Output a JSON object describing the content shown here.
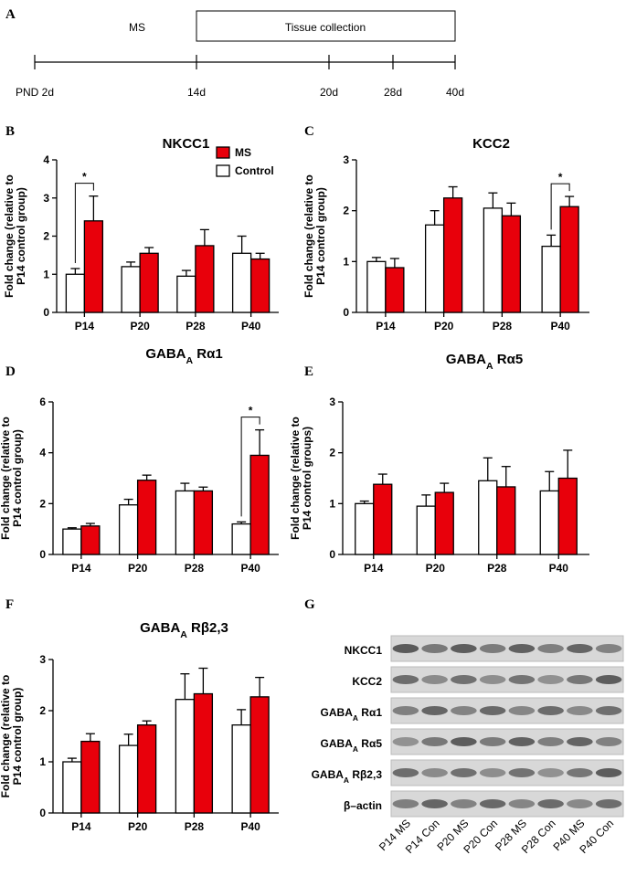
{
  "timeline": {
    "panel": "A",
    "phases": [
      "MS",
      "Tissue collection"
    ],
    "ticks": [
      "PND 2d",
      "14d",
      "20d",
      "28d",
      "40d"
    ]
  },
  "chart_data": [
    {
      "type": "bar",
      "panel": "B",
      "title_parts": [
        {
          "text": "NKCC1"
        }
      ],
      "ylabel": [
        "Fold change (relative to",
        "P14 control group)"
      ],
      "categories": [
        "P14",
        "P20",
        "P28",
        "P40"
      ],
      "series": [
        {
          "name": "Control",
          "color": "#ffffff",
          "values": [
            1.0,
            1.2,
            0.95,
            1.55
          ],
          "errors": [
            0.15,
            0.12,
            0.15,
            0.45
          ]
        },
        {
          "name": "MS",
          "color": "#e8000b",
          "values": [
            2.4,
            1.55,
            1.75,
            1.4
          ],
          "errors": [
            0.65,
            0.15,
            0.42,
            0.15
          ]
        }
      ],
      "ylim": [
        0,
        4
      ],
      "yticks": [
        0,
        1,
        2,
        3,
        4
      ],
      "legend": "upper right",
      "annotations": [
        {
          "text": "*",
          "category": "P14"
        }
      ]
    },
    {
      "type": "bar",
      "panel": "C",
      "title_parts": [
        {
          "text": "KCC2"
        }
      ],
      "ylabel": [
        "Fold change (relative to",
        "P14 control group)"
      ],
      "categories": [
        "P14",
        "P20",
        "P28",
        "P40"
      ],
      "series": [
        {
          "name": "Control",
          "color": "#ffffff",
          "values": [
            1.0,
            1.72,
            2.05,
            1.3
          ],
          "errors": [
            0.08,
            0.28,
            0.3,
            0.22
          ]
        },
        {
          "name": "MS",
          "color": "#e8000b",
          "values": [
            0.88,
            2.25,
            1.9,
            2.08
          ],
          "errors": [
            0.18,
            0.22,
            0.25,
            0.2
          ]
        }
      ],
      "ylim": [
        0,
        3
      ],
      "yticks": [
        0,
        1,
        2,
        3
      ],
      "annotations": [
        {
          "text": "*",
          "category": "P40"
        }
      ]
    },
    {
      "type": "bar",
      "panel": "D",
      "title_parts": [
        {
          "text": "GABA"
        },
        {
          "text": "A",
          "sub": true
        },
        {
          "text": " Rα1"
        }
      ],
      "ylabel": [
        "Fold change (relative to",
        "P14 control group)"
      ],
      "categories": [
        "P14",
        "P20",
        "P28",
        "P40"
      ],
      "series": [
        {
          "name": "Control",
          "color": "#ffffff",
          "values": [
            1.0,
            1.95,
            2.5,
            1.2
          ],
          "errors": [
            0.05,
            0.22,
            0.3,
            0.08
          ]
        },
        {
          "name": "MS",
          "color": "#e8000b",
          "values": [
            1.12,
            2.92,
            2.5,
            3.9
          ],
          "errors": [
            0.1,
            0.2,
            0.15,
            1.0
          ]
        }
      ],
      "ylim": [
        0,
        6
      ],
      "yticks": [
        0,
        2,
        4,
        6
      ],
      "annotations": [
        {
          "text": "*",
          "category": "P40"
        }
      ]
    },
    {
      "type": "bar",
      "panel": "E",
      "title_parts": [
        {
          "text": "GABA"
        },
        {
          "text": "A",
          "sub": true
        },
        {
          "text": " Rα5"
        }
      ],
      "ylabel": [
        "Fold change (relative to",
        "P14 control groups)"
      ],
      "categories": [
        "P14",
        "P20",
        "P28",
        "P40"
      ],
      "series": [
        {
          "name": "Control",
          "color": "#ffffff",
          "values": [
            1.0,
            0.95,
            1.45,
            1.25
          ],
          "errors": [
            0.05,
            0.22,
            0.45,
            0.38
          ]
        },
        {
          "name": "MS",
          "color": "#e8000b",
          "values": [
            1.38,
            1.22,
            1.33,
            1.5
          ],
          "errors": [
            0.2,
            0.18,
            0.4,
            0.55
          ]
        }
      ],
      "ylim": [
        0,
        3
      ],
      "yticks": [
        0,
        1,
        2,
        3
      ]
    },
    {
      "type": "bar",
      "panel": "F",
      "title_parts": [
        {
          "text": "GABA"
        },
        {
          "text": "A",
          "sub": true
        },
        {
          "text": " Rβ2,3"
        }
      ],
      "ylabel": [
        "Fold change (relative to",
        "P14 control group)"
      ],
      "categories": [
        "P14",
        "P20",
        "P28",
        "P40"
      ],
      "series": [
        {
          "name": "Control",
          "color": "#ffffff",
          "values": [
            1.0,
            1.32,
            2.22,
            1.72
          ],
          "errors": [
            0.07,
            0.22,
            0.5,
            0.3
          ]
        },
        {
          "name": "MS",
          "color": "#e8000b",
          "values": [
            1.4,
            1.72,
            2.33,
            2.27
          ],
          "errors": [
            0.15,
            0.08,
            0.5,
            0.38
          ]
        }
      ],
      "ylim": [
        0,
        3
      ],
      "yticks": [
        0,
        1,
        2,
        3
      ]
    }
  ],
  "blot": {
    "panel": "G",
    "rows": [
      {
        "parts": [
          {
            "text": "NKCC1"
          }
        ]
      },
      {
        "parts": [
          {
            "text": "KCC2"
          }
        ]
      },
      {
        "parts": [
          {
            "text": "GABA"
          },
          {
            "text": "A",
            "sub": true
          },
          {
            "text": " Rα1"
          }
        ]
      },
      {
        "parts": [
          {
            "text": "GABA"
          },
          {
            "text": "A",
            "sub": true
          },
          {
            "text": " Rα5"
          }
        ]
      },
      {
        "parts": [
          {
            "text": "GABA"
          },
          {
            "text": "A",
            "sub": true
          },
          {
            "text": " Rβ2,3"
          }
        ]
      },
      {
        "parts": [
          {
            "text": "β–actin"
          }
        ]
      }
    ],
    "lanes": [
      "P14 MS",
      "P14 Con",
      "P20 MS",
      "P20 Con",
      "P28 MS",
      "P28 Con",
      "P40 MS",
      "P40 Con"
    ]
  }
}
